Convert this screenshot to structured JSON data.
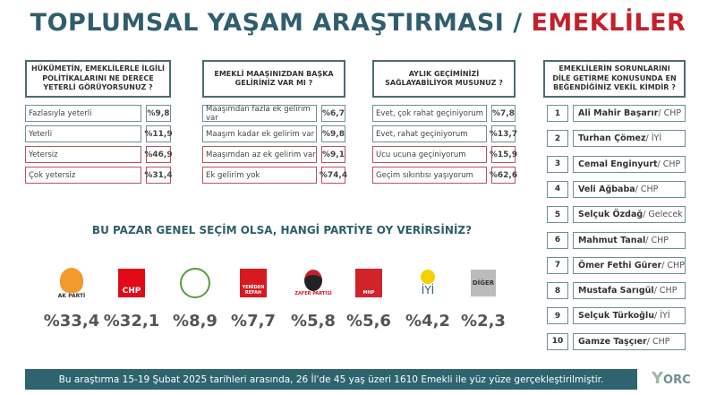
{
  "title": {
    "main": "TOPLUMSAL YAŞAM ARAŞTIRMASI / ",
    "highlight": "EMEKLİLER"
  },
  "questions": [
    {
      "question": "HÜKÜMETİN, EMEKLİLERLE İLGİLİ POLİTİKALARINI NE DERECE YETERLİ GÖRÜYORSUNUZ ?",
      "answers": [
        {
          "label": "Fazlasıyla yeterli",
          "value": "%9,8",
          "color": "teal"
        },
        {
          "label": "Yeterli",
          "value": "%11,9",
          "color": "teal"
        },
        {
          "label": "Yetersiz",
          "value": "%46,9",
          "color": "red"
        },
        {
          "label": "Çok yetersiz",
          "value": "%31,4",
          "color": "red"
        }
      ]
    },
    {
      "question": "EMEKLİ MAAŞINIZDAN BAŞKA GELİRİNİZ VAR MI ?",
      "answers": [
        {
          "label": "Maaşımdan fazla ek gelirim var",
          "value": "%6,7",
          "color": "teal"
        },
        {
          "label": "Maaşım kadar ek gelirim var",
          "value": "%9,8",
          "color": "teal"
        },
        {
          "label": "Maaşımdan az ek gelirim var",
          "value": "%9,1",
          "color": "red"
        },
        {
          "label": "Ek gelirim yok",
          "value": "%74,4",
          "color": "red"
        }
      ]
    },
    {
      "question": "AYLIK GEÇİMİNİZİ SAĞLAYABİLİYOR MUSUNUZ ?",
      "answers": [
        {
          "label": "Evet, çok rahat geçiniyorum",
          "value": "%7,8",
          "color": "teal"
        },
        {
          "label": "Evet, rahat geçiniyorum",
          "value": "%13,7",
          "color": "teal"
        },
        {
          "label": "Ucu ucuna geçiniyorum",
          "value": "%15,9",
          "color": "red"
        },
        {
          "label": "Geçim sıkıntısı yaşıyorum",
          "value": "%62,6",
          "color": "red"
        }
      ]
    }
  ],
  "vekil": {
    "question": "EMEKLİLERİN SORUNLARINI DİLE GETİRME KONUSUNDA EN BEĞENDİĞİNİZ VEKİL KİMDİR ?",
    "items": [
      {
        "rank": "1",
        "name": "Ali Mahir Başarır",
        "party": " / CHP"
      },
      {
        "rank": "2",
        "name": "Turhan Çömez",
        "party": " / İYİ"
      },
      {
        "rank": "3",
        "name": "Cemal Enginyurt",
        "party": " / CHP"
      },
      {
        "rank": "4",
        "name": "Veli Ağbaba",
        "party": " / CHP"
      },
      {
        "rank": "5",
        "name": "Selçuk Özdağ",
        "party": " / Gelecek"
      },
      {
        "rank": "6",
        "name": "Mahmut Tanal",
        "party": " / CHP"
      },
      {
        "rank": "7",
        "name": "Ömer Fethi Gürer",
        "party": " / CHP"
      },
      {
        "rank": "8",
        "name": "Mustafa Sarıgül",
        "party": " / CHP"
      },
      {
        "rank": "9",
        "name": "Selçuk Türkoğlu",
        "party": " / İYİ"
      },
      {
        "rank": "10",
        "name": "Gamze Taşçıer",
        "party": " / CHP"
      }
    ]
  },
  "poll": {
    "question": "BU PAZAR GENEL SEÇİM OLSA, HANGİ PARTİYE OY VERİRSİNİZ?",
    "parties": [
      {
        "logo": "AK PARTİ",
        "value": "%33,4",
        "color": "#f29a2e"
      },
      {
        "logo": "CHP",
        "value": "%32,1",
        "color": "#e30a17"
      },
      {
        "logo": "DEM",
        "value": "%8,9",
        "color": "#5a9c3c"
      },
      {
        "logo": "YENİDEN REFAH",
        "value": "%7,7",
        "color": "#d71920"
      },
      {
        "logo": "ZAFER PARTİSİ",
        "value": "%5,8",
        "color": "#c8202a"
      },
      {
        "logo": "MHP",
        "value": "%5,6",
        "color": "#d2232a"
      },
      {
        "logo": "İYİ",
        "value": "%4,2",
        "color": "#f5d000"
      },
      {
        "logo": "DİĞER",
        "value": "%2,3",
        "color": "#bbbbbb"
      }
    ]
  },
  "footer": "Bu araştırma 15-19 Şubat 2025 tarihleri arasında, 26 İl'de 45 yaş üzeri 1610 Emekli ile yüz yüze gerçekleştirilmiştir.",
  "brand": "ORC"
}
